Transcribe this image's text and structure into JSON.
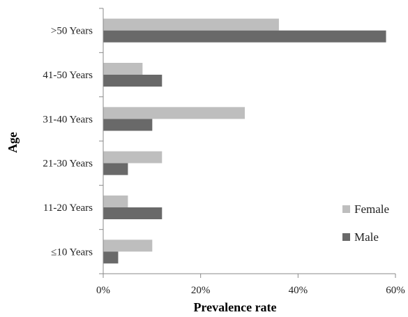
{
  "chart_data": {
    "type": "bar",
    "orientation": "horizontal",
    "xlabel": "Prevalence rate",
    "ylabel": "Age",
    "xlim": [
      0,
      60
    ],
    "x_ticks": [
      "0%",
      "20%",
      "40%",
      "60%"
    ],
    "grid": false,
    "legend_position": "bottom-right",
    "categories": [
      ">50 Years",
      "41-50 Years",
      "31-40 Years",
      "21-30 Years",
      "11-20 Years",
      "≤10 Years"
    ],
    "series": [
      {
        "name": "Female",
        "color": "#bebebe",
        "values": [
          36,
          8,
          29,
          12,
          5,
          10
        ]
      },
      {
        "name": "Male",
        "color": "#696969",
        "values": [
          58,
          12,
          10,
          5,
          12,
          3
        ]
      }
    ]
  }
}
